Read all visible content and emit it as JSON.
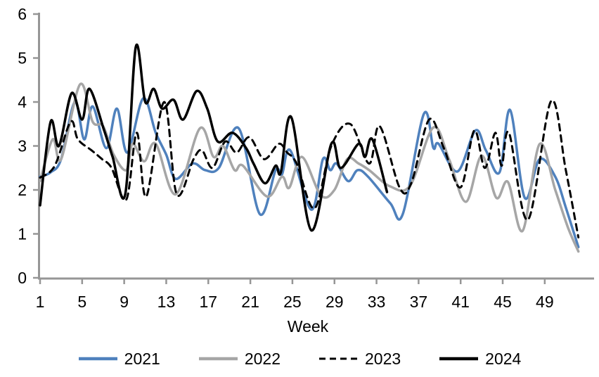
{
  "chart_data": {
    "type": "line",
    "title": "",
    "xlabel": "Week",
    "ylabel": "",
    "xlim": [
      1,
      53
    ],
    "ylim": [
      0,
      6
    ],
    "grid": false,
    "legend_position": "bottom",
    "axis_color": "#969696",
    "x_ticks": [
      "1",
      "5",
      "9",
      "13",
      "17",
      "21",
      "25",
      "29",
      "33",
      "37",
      "41",
      "45",
      "49"
    ],
    "y_ticks": [
      "0",
      "1",
      "2",
      "3",
      "4",
      "5",
      "6"
    ],
    "series": [
      {
        "name": "2021",
        "color": "#4f81bd",
        "style": "solid",
        "points": [
          [
            1,
            2.3
          ],
          [
            2,
            2.4
          ],
          [
            3,
            2.7
          ],
          [
            4.3,
            4.0
          ],
          [
            5.2,
            3.15
          ],
          [
            6,
            3.9
          ],
          [
            7.3,
            2.95
          ],
          [
            8.3,
            3.85
          ],
          [
            9.3,
            2.85
          ],
          [
            10.8,
            4.08
          ],
          [
            12,
            3.3
          ],
          [
            13,
            2.8
          ],
          [
            13.9,
            2.25
          ],
          [
            15.5,
            2.6
          ],
          [
            16.7,
            2.45
          ],
          [
            18,
            2.5
          ],
          [
            19.9,
            3.4
          ],
          [
            21.9,
            1.45
          ],
          [
            23.4,
            2.45
          ],
          [
            24,
            2.35
          ],
          [
            24.8,
            2.9
          ],
          [
            26.8,
            1.55
          ],
          [
            27.9,
            2.7
          ],
          [
            28.6,
            2.45
          ],
          [
            29.2,
            2.6
          ],
          [
            30.3,
            2.2
          ],
          [
            31.2,
            2.45
          ],
          [
            32.2,
            2.3
          ],
          [
            34.3,
            1.7
          ],
          [
            35.5,
            1.45
          ],
          [
            37.5,
            3.73
          ],
          [
            38.4,
            2.96
          ],
          [
            38.9,
            3.05
          ],
          [
            40.7,
            2.42
          ],
          [
            42.4,
            3.35
          ],
          [
            43.4,
            2.9
          ],
          [
            44.7,
            2.4
          ],
          [
            45.7,
            3.82
          ],
          [
            47.1,
            1.82
          ],
          [
            48.5,
            2.7
          ],
          [
            50,
            2.3
          ],
          [
            51,
            1.6
          ],
          [
            52.2,
            0.7
          ]
        ]
      },
      {
        "name": "2022",
        "color": "#a6a6a6",
        "style": "solid",
        "points": [
          [
            1,
            2.2
          ],
          [
            2.2,
            3.15
          ],
          [
            3,
            2.7
          ],
          [
            4.8,
            4.4
          ],
          [
            6,
            3.55
          ],
          [
            7,
            3.45
          ],
          [
            8,
            2.8
          ],
          [
            9.2,
            2.45
          ],
          [
            9.8,
            3.05
          ],
          [
            10.9,
            2.65
          ],
          [
            12,
            3.05
          ],
          [
            13.9,
            1.9
          ],
          [
            16.2,
            3.4
          ],
          [
            17.5,
            2.75
          ],
          [
            18.4,
            3.0
          ],
          [
            19.5,
            2.45
          ],
          [
            20.3,
            2.55
          ],
          [
            22.6,
            1.85
          ],
          [
            24,
            2.3
          ],
          [
            24.7,
            2.05
          ],
          [
            25.9,
            2.75
          ],
          [
            27.7,
            1.88
          ],
          [
            29,
            2.0
          ],
          [
            30.2,
            2.7
          ],
          [
            31.3,
            2.6
          ],
          [
            32.3,
            2.45
          ],
          [
            34.3,
            2.08
          ],
          [
            36.2,
            2.1
          ],
          [
            38.4,
            3.42
          ],
          [
            39.9,
            2.7
          ],
          [
            41.5,
            1.73
          ],
          [
            43,
            2.78
          ],
          [
            44.4,
            1.82
          ],
          [
            45.5,
            2.18
          ],
          [
            46.9,
            1.07
          ],
          [
            48.5,
            3.04
          ],
          [
            50,
            2.0
          ],
          [
            51.2,
            1.15
          ],
          [
            52.2,
            0.6
          ]
        ]
      },
      {
        "name": "2023",
        "color": "#000000",
        "style": "dashed",
        "points": [
          [
            1,
            2.28
          ],
          [
            2.4,
            2.55
          ],
          [
            3.9,
            3.55
          ],
          [
            4.6,
            3.15
          ],
          [
            5.9,
            2.9
          ],
          [
            6.9,
            2.7
          ],
          [
            7.8,
            2.5
          ],
          [
            9.2,
            1.78
          ],
          [
            10.2,
            3.3
          ],
          [
            11.1,
            1.85
          ],
          [
            12.8,
            4.0
          ],
          [
            14,
            1.9
          ],
          [
            15.6,
            2.7
          ],
          [
            16.4,
            2.9
          ],
          [
            17.4,
            2.5
          ],
          [
            18.6,
            3.1
          ],
          [
            19.7,
            2.85
          ],
          [
            20.9,
            3.2
          ],
          [
            22.3,
            2.7
          ],
          [
            23.7,
            3.05
          ],
          [
            24.5,
            2.85
          ],
          [
            25.4,
            2.6
          ],
          [
            27.1,
            1.58
          ],
          [
            28.7,
            3.0
          ],
          [
            30.5,
            3.5
          ],
          [
            32.3,
            2.6
          ],
          [
            33.3,
            3.45
          ],
          [
            35.2,
            2.05
          ],
          [
            36.3,
            2.15
          ],
          [
            38,
            3.6
          ],
          [
            39.4,
            2.95
          ],
          [
            41,
            2.06
          ],
          [
            42.3,
            3.35
          ],
          [
            43.3,
            2.5
          ],
          [
            44.3,
            3.3
          ],
          [
            44.9,
            2.55
          ],
          [
            45.6,
            3.3
          ],
          [
            47.4,
            1.32
          ],
          [
            49.6,
            4.02
          ],
          [
            51,
            2.45
          ],
          [
            52.2,
            0.92
          ]
        ]
      },
      {
        "name": "2024",
        "color": "#000000",
        "style": "solid",
        "points": [
          [
            1,
            1.65
          ],
          [
            2,
            3.55
          ],
          [
            2.8,
            3.0
          ],
          [
            4,
            4.2
          ],
          [
            5,
            3.6
          ],
          [
            5.7,
            4.3
          ],
          [
            7.1,
            3.35
          ],
          [
            7.9,
            2.75
          ],
          [
            9.1,
            1.9
          ],
          [
            10.1,
            5.25
          ],
          [
            11,
            4.0
          ],
          [
            11.8,
            4.3
          ],
          [
            12.6,
            3.85
          ],
          [
            13.7,
            4.05
          ],
          [
            14.6,
            3.6
          ],
          [
            15.9,
            4.25
          ],
          [
            16.9,
            3.85
          ],
          [
            17.9,
            3.1
          ],
          [
            19.3,
            3.3
          ],
          [
            20.6,
            2.95
          ],
          [
            21.3,
            2.6
          ],
          [
            22.4,
            2.15
          ],
          [
            23.4,
            2.55
          ],
          [
            23.9,
            2.4
          ],
          [
            24.9,
            3.65
          ],
          [
            26.8,
            1.08
          ],
          [
            28.7,
            3.05
          ],
          [
            29.6,
            2.5
          ],
          [
            31.3,
            3.05
          ],
          [
            31.9,
            2.75
          ],
          [
            32.6,
            3.15
          ],
          [
            34,
            1.95
          ]
        ]
      }
    ]
  }
}
